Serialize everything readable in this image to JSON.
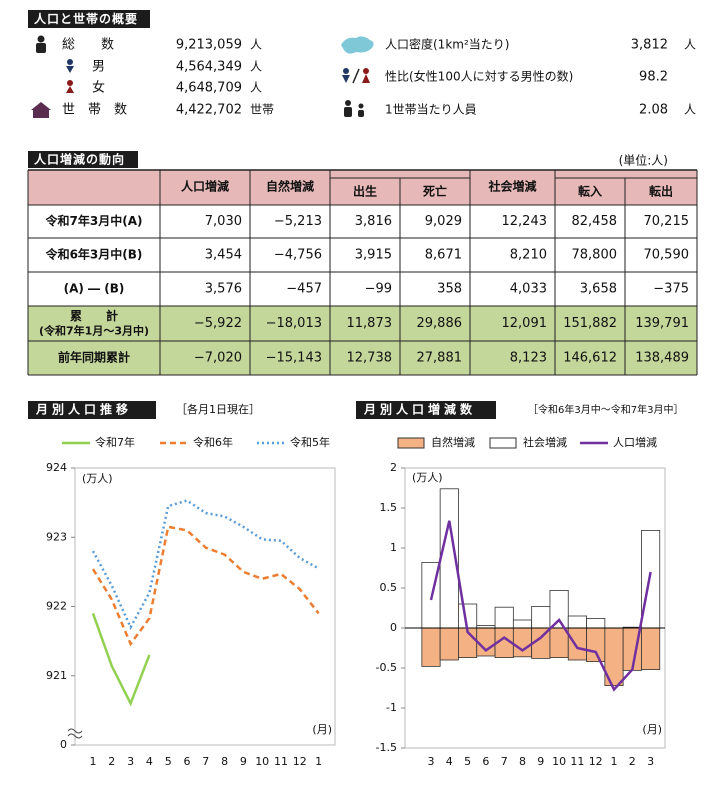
{
  "summary": {
    "title": "人口と世帯の概要",
    "left": [
      {
        "label": "総　　数",
        "value": "9,213,059",
        "unit": "人"
      },
      {
        "label": "男",
        "value": "4,564,349",
        "unit": "人"
      },
      {
        "label": "女",
        "value": "4,648,709",
        "unit": "人"
      },
      {
        "label": "世　帯　数",
        "value": "4,422,702",
        "unit": "世帯"
      }
    ],
    "right": [
      {
        "label": "人口密度(1km²当たり)",
        "value": "3,812",
        "unit": "人"
      },
      {
        "label": "性比(女性100人に対する男性の数)",
        "value": "98.2"
      },
      {
        "label": "1世帯当たり人員",
        "value": "2.08",
        "unit": "人"
      }
    ]
  },
  "trend": {
    "title": "人口増減の動向",
    "unit": "(単位:人)",
    "header": [
      "人口増減",
      "自然増減",
      "出生",
      "死亡",
      "社会増減",
      "転入",
      "転出"
    ],
    "rows": [
      {
        "label": "令和7年3月中(A)",
        "cells": [
          "7,030",
          "−5,213",
          "3,816",
          "9,029",
          "12,243",
          "82,458",
          "70,215"
        ]
      },
      {
        "label": "令和6年3月中(B)",
        "cells": [
          "3,454",
          "−4,756",
          "3,915",
          "8,671",
          "8,210",
          "78,800",
          "70,590"
        ]
      },
      {
        "label": "(A) ― (B)",
        "cells": [
          "3,576",
          "−457",
          "−99",
          "358",
          "4,033",
          "3,658",
          "−375"
        ]
      },
      {
        "label": "累　　計",
        "note": "(令和7年1月～3月中)",
        "cells": [
          "−5,922",
          "−18,013",
          "11,873",
          "29,886",
          "12,091",
          "151,882",
          "139,791"
        ]
      },
      {
        "label": "前年同期累計",
        "cells": [
          "−7,020",
          "−15,143",
          "12,738",
          "27,881",
          "8,123",
          "146,612",
          "138,489"
        ]
      }
    ]
  },
  "chart_data": [
    {
      "type": "line",
      "title": "月別人口推移",
      "subtitle": "［各月1日現在］",
      "y_label": "(万人)",
      "x_label": "(月)",
      "categories": [
        "1",
        "2",
        "3",
        "4",
        "5",
        "6",
        "7",
        "8",
        "9",
        "10",
        "11",
        "12",
        "1"
      ],
      "series": [
        {
          "name": "令和7年",
          "color": "#92d050",
          "line_style": "solid",
          "values": [
            921.9,
            921.14,
            920.6,
            921.3,
            null,
            null,
            null,
            null,
            null,
            null,
            null,
            null,
            null
          ]
        },
        {
          "name": "令和6年",
          "color": "#ed7d31",
          "line_style": "dashed",
          "values": [
            922.54,
            922.1,
            921.46,
            921.83,
            923.15,
            923.1,
            922.85,
            922.75,
            922.5,
            922.4,
            922.47,
            922.25,
            921.9
          ]
        },
        {
          "name": "令和5年",
          "color": "#5b9bd5",
          "line_style": "dotted",
          "values": [
            922.8,
            922.3,
            921.7,
            922.2,
            923.45,
            923.53,
            923.35,
            923.3,
            923.15,
            922.97,
            922.95,
            922.7,
            922.55
          ]
        }
      ],
      "ylim": [
        920,
        924
      ],
      "yticks": [
        {
          "value": 920,
          "label": "0"
        },
        921,
        922,
        923,
        924
      ]
    },
    {
      "type": "combo",
      "title": "月別人口増減数",
      "subtitle": "［令和6年3月中～令和7年3月中］",
      "y_label": "(万人)",
      "x_label": "(月)",
      "categories": [
        "3",
        "4",
        "5",
        "6",
        "7",
        "8",
        "9",
        "10",
        "11",
        "12",
        "1",
        "2",
        "3"
      ],
      "series": [
        {
          "name": "自然増減",
          "type": "bar",
          "color": "#f4b183",
          "values": [
            -0.48,
            -0.4,
            -0.37,
            -0.35,
            -0.37,
            -0.36,
            -0.38,
            -0.37,
            -0.4,
            -0.42,
            -0.72,
            -0.53,
            -0.52
          ]
        },
        {
          "name": "社会増減",
          "type": "bar",
          "color": "#ffffff",
          "values": [
            0.82,
            1.74,
            0.3,
            0.03,
            0.26,
            0.1,
            0.27,
            0.47,
            0.15,
            0.12,
            -0.05,
            0.01,
            1.22
          ]
        },
        {
          "name": "人口増減",
          "type": "line",
          "color": "#7030a0",
          "values": [
            0.35,
            1.34,
            -0.05,
            -0.28,
            -0.12,
            -0.28,
            -0.12,
            0.1,
            -0.25,
            -0.3,
            -0.77,
            -0.52,
            0.7
          ]
        }
      ],
      "ylim": [
        -1.5,
        2
      ],
      "yticks": [
        -1.5,
        -1,
        -0.5,
        0,
        0.5,
        1,
        1.5,
        2
      ]
    }
  ]
}
